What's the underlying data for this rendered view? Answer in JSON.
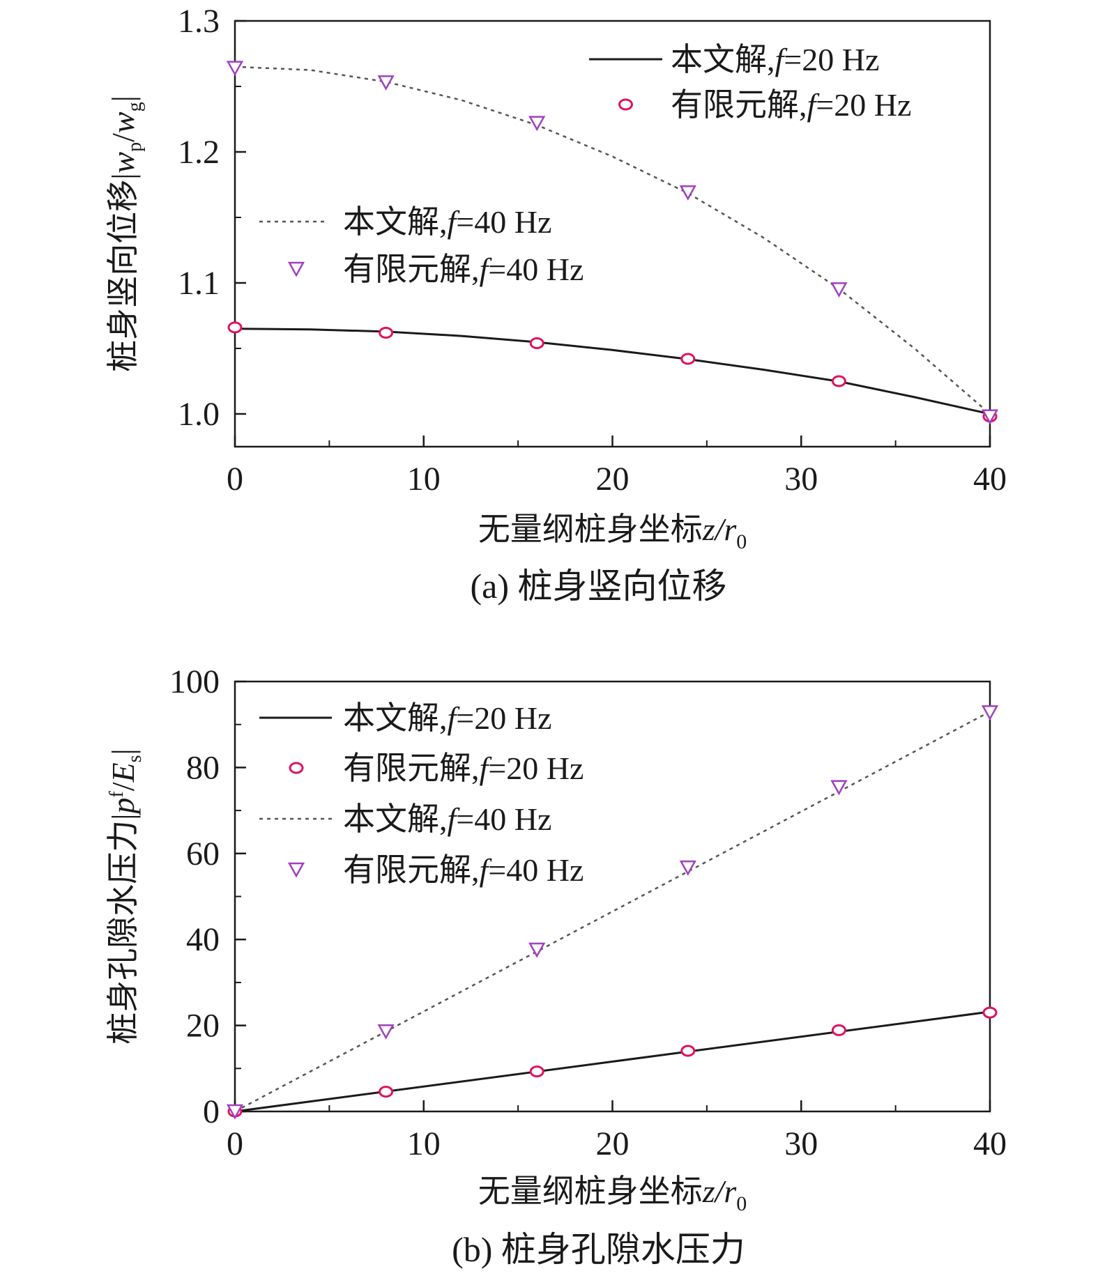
{
  "chart_data": [
    {
      "id": "a",
      "type": "line",
      "caption": "(a) 桩身竖向位移",
      "xlabel": "无量纲桩身坐标z/r",
      "xlabel_sub": "0",
      "ylabel": "桩身竖向位移|w",
      "ylabel_sub1": "p",
      "ylabel_mid": "/w",
      "ylabel_sub2": "g",
      "ylabel_end": "|",
      "xlim": [
        0,
        40
      ],
      "ylim": [
        0.975,
        1.3
      ],
      "xticks": [
        0,
        10,
        20,
        30,
        40
      ],
      "yticks": [
        1.0,
        1.1,
        1.2,
        1.3
      ],
      "xtick_labels": [
        "0",
        "10",
        "20",
        "30",
        "40"
      ],
      "ytick_labels": [
        "1.0",
        "1.1",
        "1.2",
        "1.3"
      ],
      "colors": {
        "line": "#1a1a1a",
        "dotted": "#555555",
        "circle": "#e0115f",
        "triangle": "#a040c0"
      },
      "series": [
        {
          "name": "本文解, f=20 Hz",
          "label_main": "本文解,",
          "label_f": "f",
          "label_rest": "=20 Hz",
          "style": "solid",
          "x": [
            0,
            4,
            8,
            12,
            16,
            20,
            24,
            28,
            32,
            36,
            40
          ],
          "y": [
            1.065,
            1.0645,
            1.0628,
            1.0595,
            1.0548,
            1.0488,
            1.0418,
            1.0338,
            1.0248,
            1.0128,
            1.0
          ]
        },
        {
          "name": "有限元解, f=20 Hz",
          "label_main": "有限元解,",
          "label_f": "f",
          "label_rest": "=20 Hz",
          "style": "circle",
          "x": [
            0,
            8,
            16,
            24,
            32,
            40
          ],
          "y": [
            1.066,
            1.062,
            1.054,
            1.042,
            1.025,
            0.998
          ]
        },
        {
          "name": "本文解, f=40 Hz",
          "label_main": "本文解,",
          "label_f": "f",
          "label_rest": "=40 Hz",
          "style": "dotted",
          "x": [
            0,
            4,
            8,
            12,
            16,
            20,
            24,
            28,
            32,
            36,
            40
          ],
          "y": [
            1.265,
            1.2625,
            1.2535,
            1.2395,
            1.2205,
            1.1965,
            1.1685,
            1.1345,
            1.0955,
            1.05,
            1.0
          ]
        },
        {
          "name": "有限元解, f=40 Hz",
          "label_main": "有限元解,",
          "label_f": "f",
          "label_rest": "=40 Hz",
          "style": "triangle",
          "x": [
            0,
            8,
            16,
            24,
            32,
            40
          ],
          "y": [
            1.264,
            1.253,
            1.222,
            1.169,
            1.095,
            0.998
          ]
        }
      ]
    },
    {
      "id": "b",
      "type": "line",
      "caption": "(b) 桩身孔隙水压力",
      "xlabel": "无量纲桩身坐标z/r",
      "xlabel_sub": "0",
      "ylabel": "桩身孔隙水压力|p",
      "ylabel_sup": "f",
      "ylabel_mid": "/E",
      "ylabel_sub2": "s",
      "ylabel_end": "|",
      "xlim": [
        0,
        40
      ],
      "ylim": [
        0,
        100
      ],
      "xticks": [
        0,
        10,
        20,
        30,
        40
      ],
      "yticks": [
        0,
        20,
        40,
        60,
        80,
        100
      ],
      "xtick_labels": [
        "0",
        "10",
        "20",
        "30",
        "40"
      ],
      "ytick_labels": [
        "0",
        "20",
        "40",
        "60",
        "80",
        "100"
      ],
      "colors": {
        "line": "#1a1a1a",
        "dotted": "#555555",
        "circle": "#e0115f",
        "triangle": "#a040c0"
      },
      "series": [
        {
          "name": "本文解, f=20 Hz",
          "label_main": "本文解,",
          "label_f": "f",
          "label_rest": "=20 Hz",
          "style": "solid",
          "x": [
            0,
            40
          ],
          "y": [
            0,
            23.2
          ]
        },
        {
          "name": "有限元解, f=20 Hz",
          "label_main": "有限元解,",
          "label_f": "f",
          "label_rest": "=20 Hz",
          "style": "circle",
          "x": [
            0,
            8,
            16,
            24,
            32,
            40
          ],
          "y": [
            0,
            4.6,
            9.3,
            14.1,
            18.9,
            23.0
          ]
        },
        {
          "name": "本文解, f=40 Hz",
          "label_main": "本文解,",
          "label_f": "f",
          "label_rest": "=40 Hz",
          "style": "dotted",
          "x": [
            0,
            40
          ],
          "y": [
            0,
            93.0
          ]
        },
        {
          "name": "有限元解, f=40 Hz",
          "label_main": "有限元解,",
          "label_f": "f",
          "label_rest": "=40 Hz",
          "style": "triangle",
          "x": [
            0,
            8,
            16,
            24,
            32,
            40
          ],
          "y": [
            0,
            18.6,
            37.6,
            56.7,
            75.4,
            92.8
          ]
        }
      ]
    }
  ]
}
